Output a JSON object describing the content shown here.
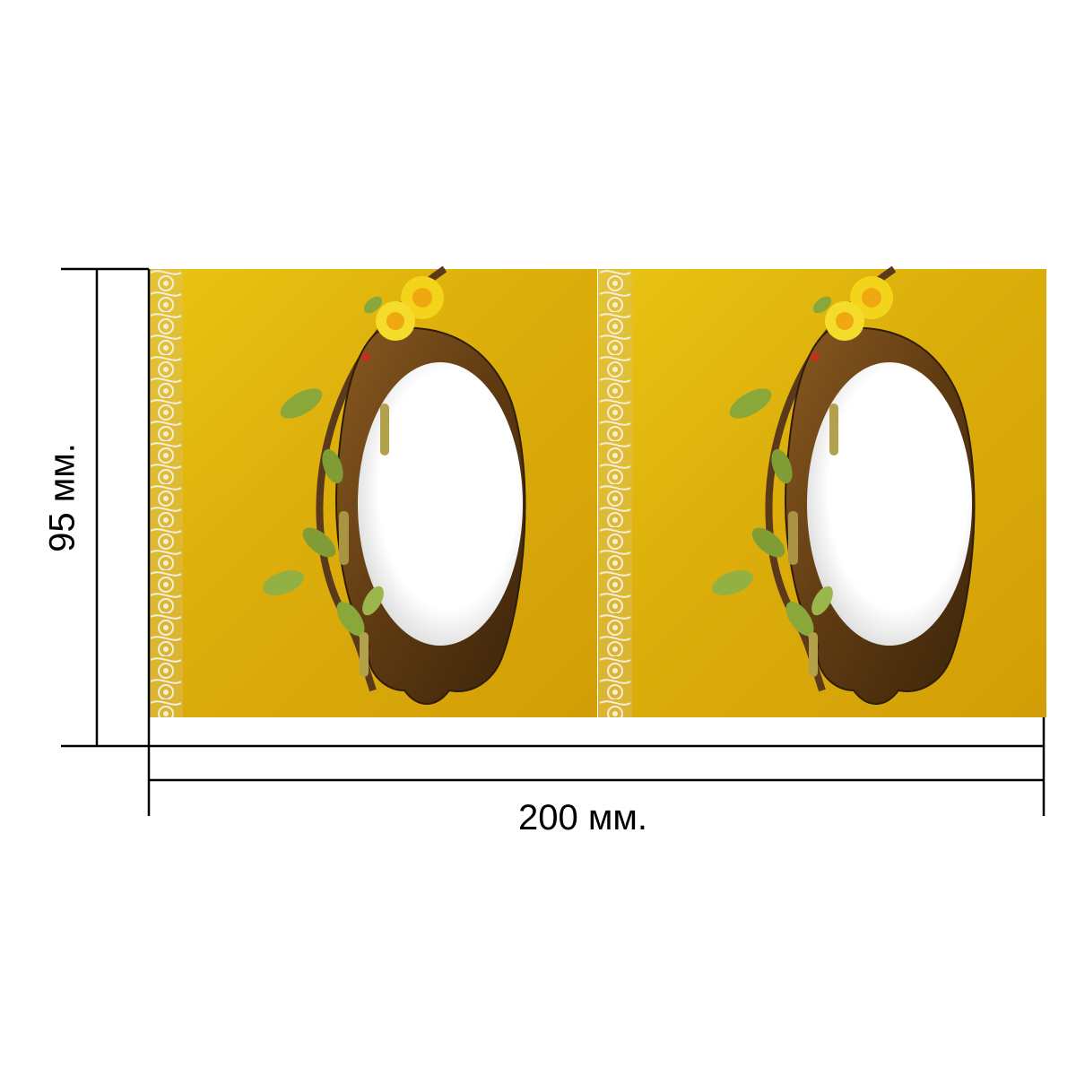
{
  "dimensions": {
    "width_label": "200 мм.",
    "height_label": "95 мм."
  },
  "artwork": {
    "panels": 2,
    "background_color": "#e2b40c",
    "frame_color": "#6e4616",
    "lace_color": "#f1ead2",
    "flower_color": "#f4d41a",
    "leaf_color": "#8aa83a"
  }
}
